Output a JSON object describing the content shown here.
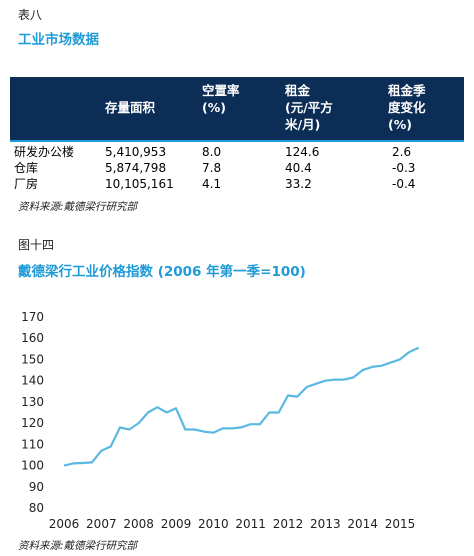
{
  "table_caption": "表八",
  "table_title": "工业市场数据",
  "table": {
    "headers": [
      {
        "key": "type",
        "label": ""
      },
      {
        "key": "stock",
        "label": "存量面积"
      },
      {
        "key": "vacancy",
        "label": "空置率\n(%)"
      },
      {
        "key": "rent",
        "label": "租金\n(元/平方\n米/月)"
      },
      {
        "key": "qoq",
        "label": "租金季\n度变化\n(%)"
      }
    ],
    "rows": [
      {
        "type": "研发办公楼",
        "stock": "5,410,953",
        "vacancy": "8.0",
        "rent": "124.6",
        "qoq": "2.6"
      },
      {
        "type": "仓库",
        "stock": "5,874,798",
        "vacancy": "7.8",
        "rent": "40.4",
        "qoq": "-0.3"
      },
      {
        "type": "厂房",
        "stock": "10,105,161",
        "vacancy": "4.1",
        "rent": "33.2",
        "qoq": "-0.4"
      }
    ]
  },
  "table_source": "资料来源:戴德梁行研究部",
  "figure_caption": "图十四",
  "figure_title": "戴德梁行工业价格指数  (2006 年第一季=100)",
  "figure_source": "资料来源:戴德梁行研究部",
  "chart_data": {
    "type": "line",
    "title": "",
    "xlabel": "",
    "ylabel": "",
    "x_ticks": [
      "2006",
      "2007",
      "2008",
      "2009",
      "2010",
      "2011",
      "2012",
      "2013",
      "2014",
      "2015"
    ],
    "y_ticks": [
      80,
      90,
      100,
      110,
      120,
      130,
      140,
      150,
      160,
      170
    ],
    "xlim": [
      2006,
      2015.7
    ],
    "ylim": [
      80,
      170
    ],
    "grid": false,
    "color": "#5bb8e0",
    "series": [
      {
        "name": "",
        "x": [
          2006.0,
          2006.25,
          2006.5,
          2006.75,
          2007.0,
          2007.25,
          2007.5,
          2007.75,
          2008.0,
          2008.25,
          2008.5,
          2008.75,
          2009.0,
          2009.25,
          2009.5,
          2009.75,
          2010.0,
          2010.25,
          2010.5,
          2010.75,
          2011.0,
          2011.25,
          2011.5,
          2011.75,
          2012.0,
          2012.25,
          2012.5,
          2012.75,
          2013.0,
          2013.25,
          2013.5,
          2013.75,
          2014.0,
          2014.25,
          2014.5,
          2014.75,
          2015.0,
          2015.25,
          2015.5
        ],
        "y": [
          100,
          101,
          101.2,
          101.5,
          107,
          109,
          118,
          117,
          120,
          125,
          127.5,
          125,
          127,
          117,
          117,
          116,
          115.5,
          117.5,
          117.5,
          118,
          119.5,
          119.5,
          125,
          125,
          133,
          132.5,
          137,
          138.5,
          140,
          140.5,
          140.5,
          141.5,
          145,
          146.5,
          147,
          148.5,
          150,
          153.5,
          155.5
        ]
      }
    ]
  }
}
